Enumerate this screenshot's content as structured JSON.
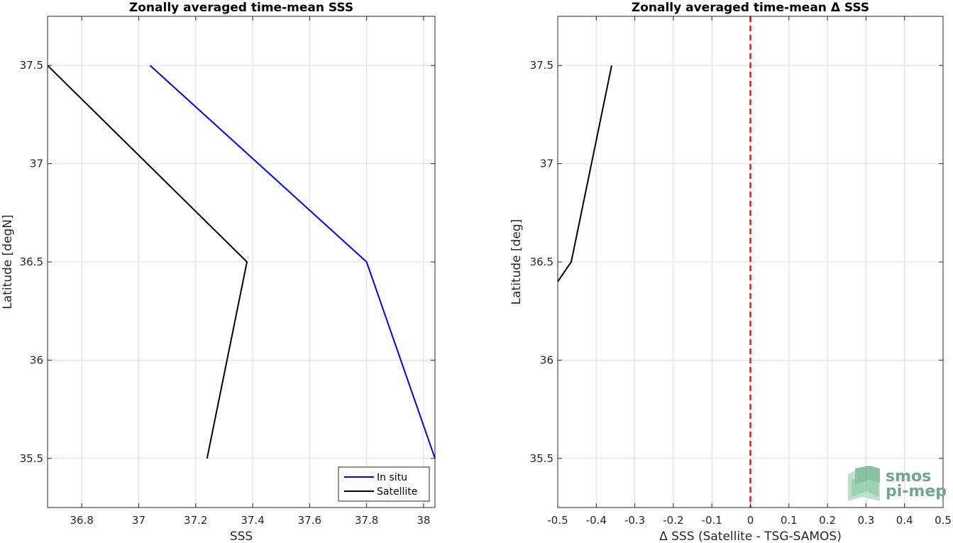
{
  "chart_data": [
    {
      "type": "line",
      "title": "Zonally averaged time-mean SSS",
      "xlabel": "SSS",
      "ylabel": "Latitude [degN]",
      "xlim": [
        36.68,
        38.04
      ],
      "ylim": [
        35.25,
        37.75
      ],
      "xticks": [
        "36.8",
        "37",
        "37.2",
        "37.4",
        "37.6",
        "37.8",
        "38"
      ],
      "xtick_values": [
        36.8,
        37.0,
        37.2,
        37.4,
        37.6,
        37.8,
        38.0
      ],
      "yticks": [
        "35.5",
        "36",
        "36.5",
        "37",
        "37.5"
      ],
      "ytick_values": [
        35.5,
        36.0,
        36.5,
        37.0,
        37.5
      ],
      "grid": true,
      "legend_position": "bottom-right",
      "series": [
        {
          "name": "In situ",
          "color": "#0000ff",
          "x": [
            37.04,
            37.8,
            38.04
          ],
          "y": [
            37.5,
            36.5,
            35.5
          ]
        },
        {
          "name": "Satellite",
          "color": "#000000",
          "x": [
            36.68,
            37.38,
            37.24
          ],
          "y": [
            37.5,
            36.5,
            35.5
          ]
        }
      ]
    },
    {
      "type": "line",
      "title": "Zonally averaged time-mean Δ SSS",
      "xlabel": "Δ SSS (Satellite - TSG-SAMOS)",
      "ylabel": "Latitude [deg]",
      "xlim": [
        -0.5,
        0.5
      ],
      "ylim": [
        35.25,
        37.75
      ],
      "xticks": [
        "-0.5",
        "-0.4",
        "-0.3",
        "-0.2",
        "-0.1",
        "0",
        "0.1",
        "0.2",
        "0.3",
        "0.4",
        "0.5"
      ],
      "xtick_values": [
        -0.5,
        -0.4,
        -0.3,
        -0.2,
        -0.1,
        0,
        0.1,
        0.2,
        0.3,
        0.4,
        0.5
      ],
      "yticks": [
        "35.5",
        "36",
        "36.5",
        "37",
        "37.5"
      ],
      "ytick_values": [
        35.5,
        36.0,
        36.5,
        37.0,
        37.5
      ],
      "grid": true,
      "zero_line_color": "#e41a1c",
      "series": [
        {
          "color": "#000000",
          "x": [
            -0.36,
            -0.465,
            -0.5
          ],
          "y": [
            37.5,
            36.5,
            36.4
          ]
        }
      ]
    }
  ],
  "logo": {
    "line1": "smos",
    "line2": "pi-mep"
  }
}
